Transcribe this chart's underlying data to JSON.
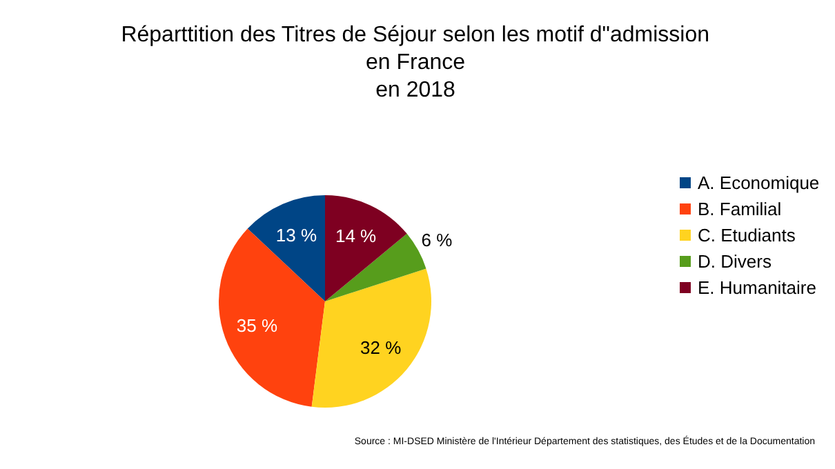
{
  "chart_data": {
    "type": "pie",
    "title": "Réparttition des Titres de Séjour selon les motif d\"admission\nen France\nen 2018",
    "categories": [
      "A. Economique",
      "B. Familial",
      "C. Etudiants",
      "D. Divers",
      "E. Humanitaire"
    ],
    "values": [
      13,
      35,
      32,
      6,
      14
    ],
    "colors": [
      "#004586",
      "#ff420e",
      "#ffd320",
      "#579d1c",
      "#7e0021"
    ],
    "value_labels": [
      "13 %",
      "35 %",
      "32 %",
      "6 %",
      "14 %"
    ],
    "legend": "right",
    "annotations": [
      "Source : MI-DSED Ministère de l'Intérieur Département des statistiques, des Études et de la Documentation"
    ]
  }
}
